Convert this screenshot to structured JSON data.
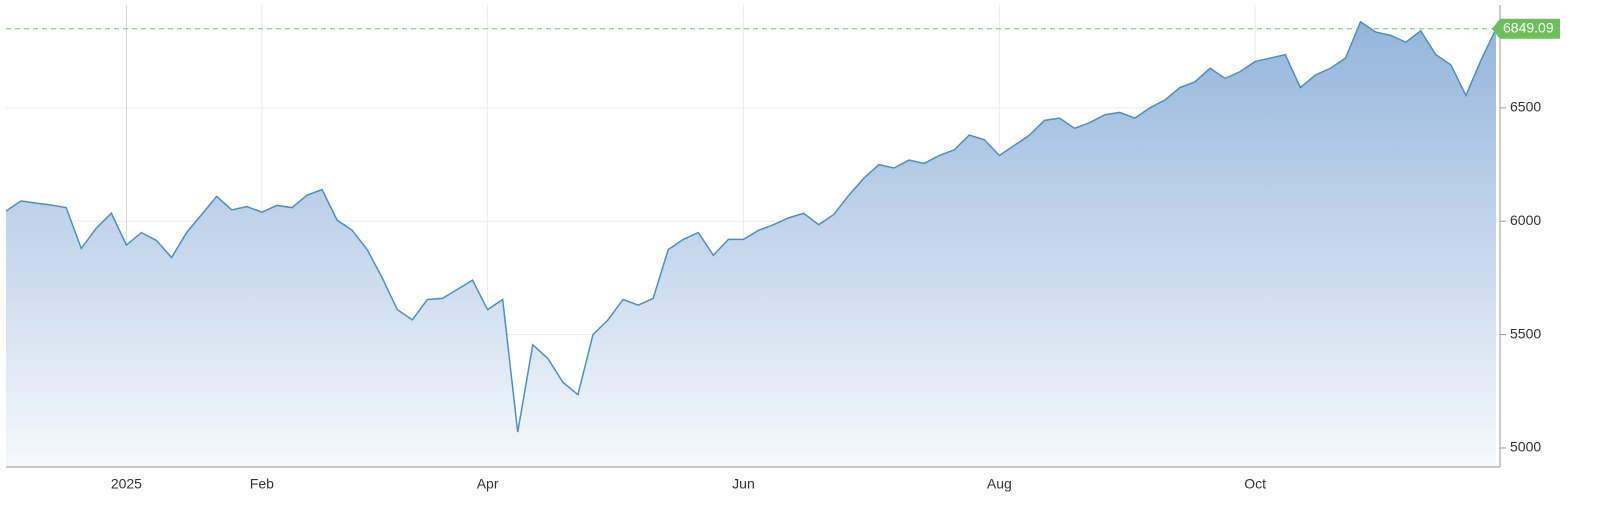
{
  "chart_data": {
    "type": "area",
    "categories": [
      null,
      null,
      null,
      null,
      null,
      null,
      null,
      null,
      "2025",
      null,
      null,
      null,
      null,
      null,
      null,
      null,
      null,
      "Feb",
      null,
      null,
      null,
      null,
      null,
      null,
      null,
      null,
      null,
      null,
      null,
      null,
      null,
      null,
      "Apr",
      null,
      null,
      null,
      null,
      null,
      null,
      null,
      null,
      null,
      null,
      null,
      null,
      null,
      null,
      null,
      null,
      "Jun",
      null,
      null,
      null,
      null,
      null,
      null,
      null,
      null,
      null,
      null,
      null,
      null,
      null,
      null,
      null,
      null,
      "Aug",
      null,
      null,
      null,
      null,
      null,
      null,
      null,
      null,
      null,
      null,
      null,
      null,
      null,
      null,
      null,
      null,
      "Oct",
      null,
      null,
      null,
      null,
      null,
      null,
      null,
      null,
      null,
      null,
      null,
      null,
      null,
      null,
      null,
      null
    ],
    "values": [
      6045,
      6090,
      6080,
      6072,
      6060,
      5880,
      5970,
      6035,
      5895,
      5950,
      5915,
      5840,
      5950,
      6030,
      6110,
      6050,
      6065,
      6040,
      6070,
      6060,
      6115,
      6140,
      6005,
      5960,
      5875,
      5750,
      5610,
      5565,
      5655,
      5660,
      5700,
      5740,
      5610,
      5655,
      5070,
      5455,
      5395,
      5290,
      5235,
      5500,
      5565,
      5655,
      5630,
      5660,
      5875,
      5920,
      5950,
      5850,
      5920,
      5920,
      5960,
      5985,
      6015,
      6035,
      5985,
      6030,
      6115,
      6190,
      6250,
      6235,
      6270,
      6255,
      6290,
      6315,
      6380,
      6360,
      6290,
      6335,
      6380,
      6445,
      6455,
      6410,
      6435,
      6470,
      6480,
      6455,
      6500,
      6535,
      6590,
      6615,
      6675,
      6630,
      6660,
      6705,
      6720,
      6735,
      6590,
      6645,
      6675,
      6720,
      6880,
      6835,
      6820,
      6790,
      6840,
      6735,
      6690,
      6555,
      6710,
      6849.09
    ],
    "color": "#4a90c8",
    "ylim": [
      4916,
      6954
    ],
    "yticks": [
      5000,
      5500,
      6000,
      6500
    ],
    "grid": true
  }
}
